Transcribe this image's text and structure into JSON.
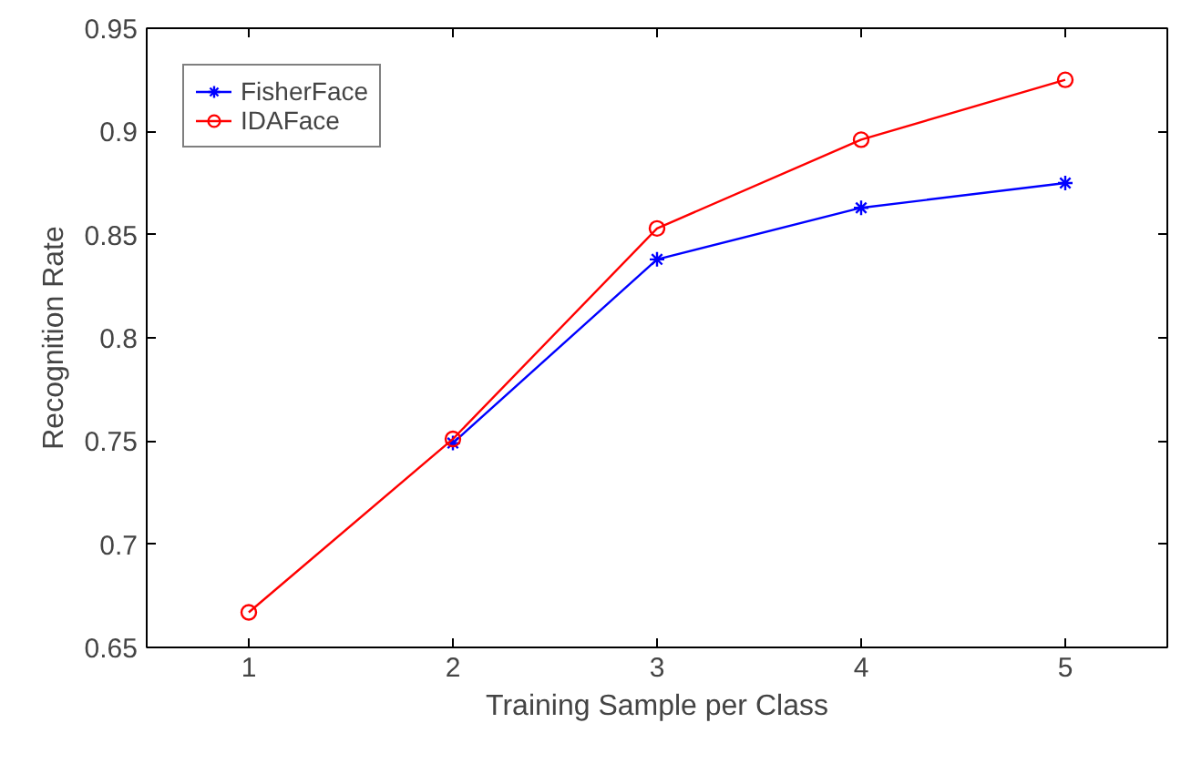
{
  "chart_data": {
    "type": "line",
    "xlabel": "Training Sample per Class",
    "ylabel": "Recognition Rate",
    "x": [
      1,
      2,
      3,
      4,
      5
    ],
    "xlim": [
      0.5,
      5.5
    ],
    "xticks": [
      1,
      2,
      3,
      4,
      5
    ],
    "ylim": [
      0.65,
      0.95
    ],
    "yticks": [
      0.65,
      0.7,
      0.75,
      0.8,
      0.85,
      0.9,
      0.95
    ],
    "grid": false,
    "legend": "top left",
    "line_style": "solid",
    "series": [
      {
        "name": "FisherFace",
        "color": "#0000ff",
        "marker": "cross",
        "values": [
          null,
          0.749,
          0.838,
          0.863,
          0.875
        ]
      },
      {
        "name": "IDAFace",
        "color": "#ff0000",
        "marker": "circle",
        "values": [
          0.667,
          0.751,
          0.853,
          0.896,
          0.925
        ]
      }
    ]
  }
}
